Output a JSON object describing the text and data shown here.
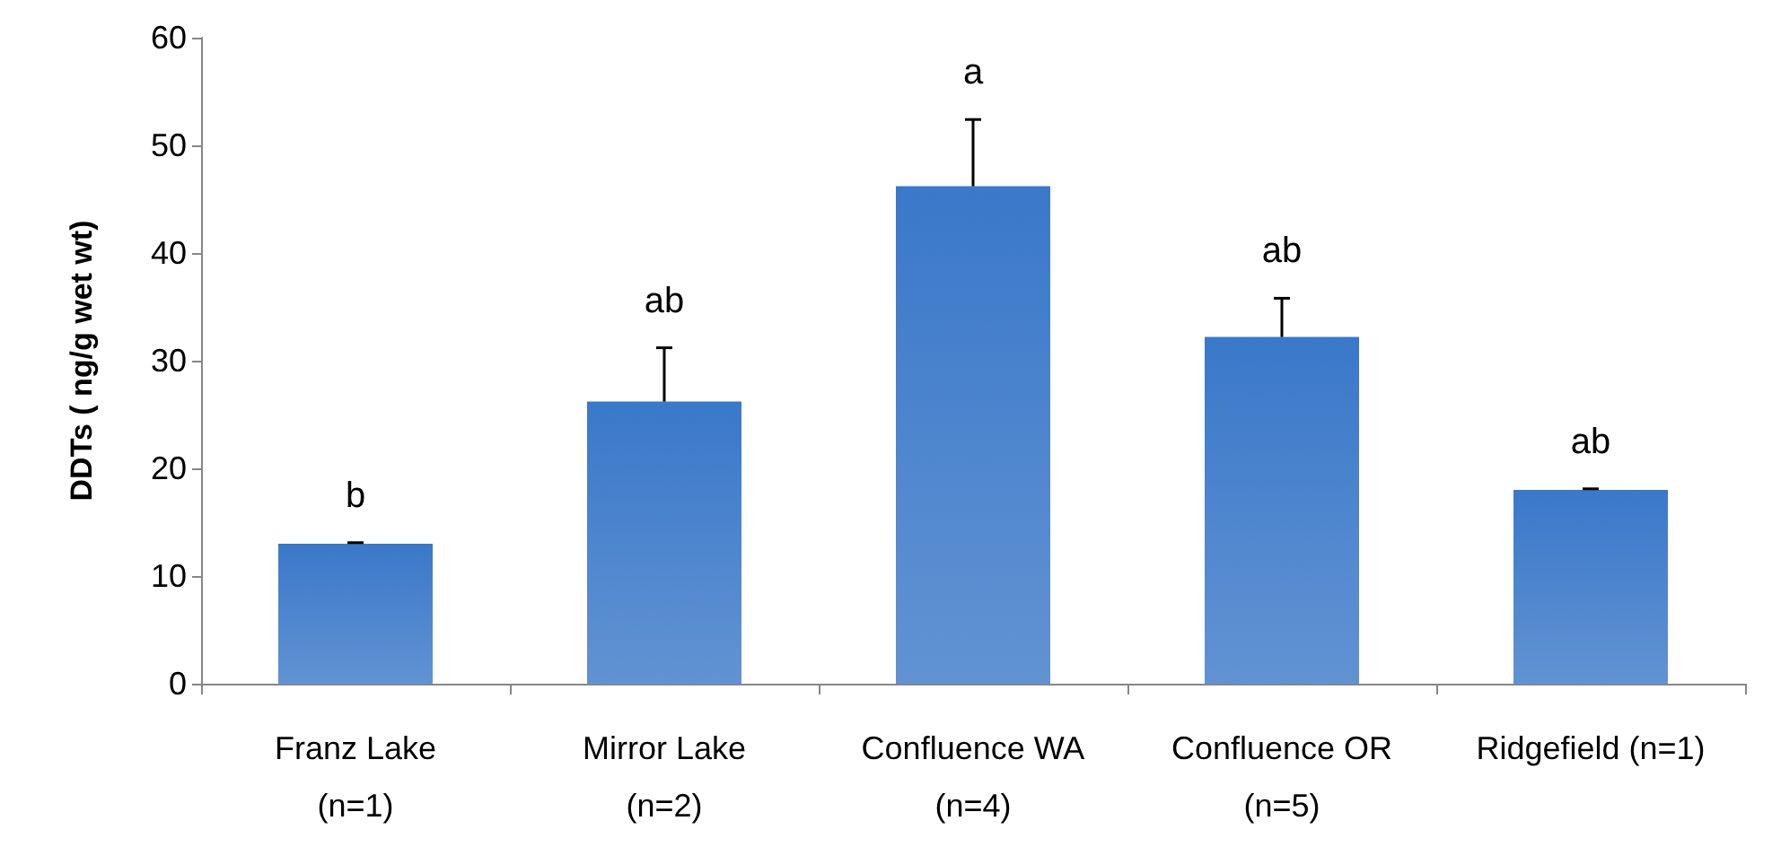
{
  "chart_data": {
    "type": "bar",
    "ylabel": "DDTs ( ng/g wet wt)",
    "categories": [
      "Franz Lake\n(n=1)",
      "Mirror Lake\n(n=2)",
      "Confluence WA\n(n=4)",
      "Confluence OR\n(n=5)",
      "Ridgefield (n=1)"
    ],
    "values": [
      13,
      26.2,
      46.2,
      32.2,
      18
    ],
    "errors": [
      [
        13,
        13.1
      ],
      [
        26.2,
        31.2
      ],
      [
        46.2,
        52.4
      ],
      [
        32.2,
        35.8
      ],
      [
        18,
        18.1
      ]
    ],
    "color": "#3a78c9",
    "ylim": [
      0,
      60
    ],
    "yticks": [
      0,
      10,
      20,
      30,
      40,
      50,
      60
    ],
    "grid": false,
    "annotations": [
      "b",
      "ab",
      "a",
      "ab",
      "ab"
    ]
  }
}
